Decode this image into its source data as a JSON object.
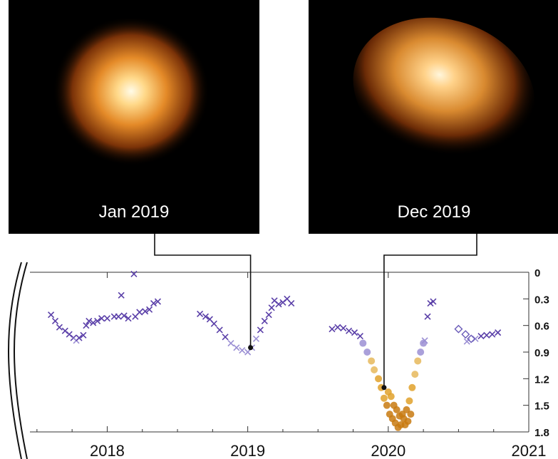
{
  "panels": [
    {
      "label": "Jan 2019"
    },
    {
      "label": "Dec 2019"
    }
  ],
  "colors": {
    "dim_star_orange": "#d98b20",
    "bright_star_purple": "#5a3fa8",
    "background": "#ffffff"
  },
  "chart_data": {
    "type": "scatter",
    "title": "",
    "xlabel": "",
    "ylabel": "",
    "y_inverted": true,
    "grid": false,
    "legend": "none",
    "xlim": [
      2017.45,
      2021.0
    ],
    "ylim": [
      0,
      1.8
    ],
    "x_ticks": [
      "2018",
      "2019",
      "2020",
      "2021"
    ],
    "y_ticks": [
      "0",
      "0.3",
      "0.6",
      "0.9",
      "1.2",
      "1.5",
      "1.8"
    ],
    "series": [
      {
        "marker": "cross",
        "points": [
          [
            2017.6,
            0.48
          ],
          [
            2017.63,
            0.55
          ],
          [
            2017.66,
            0.62
          ],
          [
            2017.7,
            0.66
          ],
          [
            2017.73,
            0.7
          ],
          [
            2017.76,
            0.74
          ],
          [
            2017.78,
            0.77
          ],
          [
            2017.8,
            0.74
          ],
          [
            2017.83,
            0.71
          ],
          [
            2017.85,
            0.6
          ],
          [
            2017.87,
            0.55
          ],
          [
            2017.9,
            0.57
          ],
          [
            2017.93,
            0.55
          ],
          [
            2017.96,
            0.52
          ],
          [
            2018.0,
            0.52
          ],
          [
            2018.05,
            0.5
          ],
          [
            2018.08,
            0.5
          ],
          [
            2018.12,
            0.49
          ],
          [
            2018.15,
            0.52
          ],
          [
            2018.2,
            0.5
          ],
          [
            2018.23,
            0.45
          ],
          [
            2018.27,
            0.44
          ],
          [
            2018.3,
            0.42
          ],
          [
            2018.33,
            0.35
          ],
          [
            2018.36,
            0.33
          ],
          [
            2018.1,
            0.26
          ],
          [
            2018.19,
            0.02
          ],
          [
            2018.66,
            0.47
          ],
          [
            2018.7,
            0.5
          ],
          [
            2018.73,
            0.53
          ],
          [
            2018.76,
            0.58
          ],
          [
            2018.8,
            0.65
          ],
          [
            2018.84,
            0.73
          ],
          [
            2018.88,
            0.8
          ],
          [
            2018.92,
            0.85
          ],
          [
            2018.96,
            0.88
          ],
          [
            2019.0,
            0.9
          ],
          [
            2019.03,
            0.85
          ],
          [
            2019.06,
            0.75
          ],
          [
            2019.09,
            0.65
          ],
          [
            2019.12,
            0.55
          ],
          [
            2019.15,
            0.48
          ],
          [
            2019.17,
            0.4
          ],
          [
            2019.19,
            0.32
          ],
          [
            2019.22,
            0.36
          ],
          [
            2019.25,
            0.34
          ],
          [
            2019.28,
            0.3
          ],
          [
            2019.31,
            0.35
          ],
          [
            2019.6,
            0.64
          ],
          [
            2019.64,
            0.62
          ],
          [
            2019.68,
            0.63
          ],
          [
            2019.72,
            0.66
          ],
          [
            2019.76,
            0.68
          ],
          [
            2019.8,
            0.72
          ],
          [
            2020.26,
            0.77
          ],
          [
            2020.28,
            0.5
          ],
          [
            2020.3,
            0.35
          ],
          [
            2020.32,
            0.33
          ],
          [
            2020.62,
            0.75
          ],
          [
            2020.66,
            0.72
          ],
          [
            2020.7,
            0.71
          ],
          [
            2020.74,
            0.7
          ],
          [
            2020.78,
            0.68
          ],
          [
            2020.56,
            0.78
          ]
        ]
      },
      {
        "marker": "dot",
        "points": [
          [
            2019.82,
            0.8
          ],
          [
            2019.85,
            0.9
          ],
          [
            2019.88,
            1.0
          ],
          [
            2019.9,
            1.1
          ],
          [
            2019.93,
            1.2
          ],
          [
            2019.95,
            1.3
          ],
          [
            2019.97,
            1.42
          ],
          [
            2019.99,
            1.5
          ],
          [
            2020.01,
            1.6
          ],
          [
            2020.03,
            1.65
          ],
          [
            2020.05,
            1.7
          ],
          [
            2020.07,
            1.75
          ],
          [
            2020.09,
            1.72
          ],
          [
            2020.11,
            1.65
          ],
          [
            2020.13,
            1.55
          ],
          [
            2020.15,
            1.45
          ],
          [
            2020.17,
            1.3
          ],
          [
            2020.19,
            1.15
          ],
          [
            2020.21,
            1.0
          ],
          [
            2020.23,
            0.9
          ],
          [
            2020.25,
            0.8
          ],
          [
            2020.02,
            1.4
          ],
          [
            2020.06,
            1.55
          ],
          [
            2020.1,
            1.6
          ],
          [
            2020.14,
            1.68
          ],
          [
            2020.0,
            1.35
          ],
          [
            2020.04,
            1.5
          ],
          [
            2020.08,
            1.62
          ],
          [
            2020.12,
            1.72
          ],
          [
            2020.16,
            1.6
          ]
        ]
      },
      {
        "marker": "diamond",
        "points": [
          [
            2020.5,
            0.64
          ],
          [
            2020.55,
            0.7
          ],
          [
            2020.59,
            0.75
          ]
        ]
      }
    ],
    "annotations": [
      {
        "label": "Jan 2019",
        "x": 2019.02,
        "y": 0.85
      },
      {
        "label": "Dec 2019",
        "x": 2019.97,
        "y": 1.3
      }
    ]
  }
}
